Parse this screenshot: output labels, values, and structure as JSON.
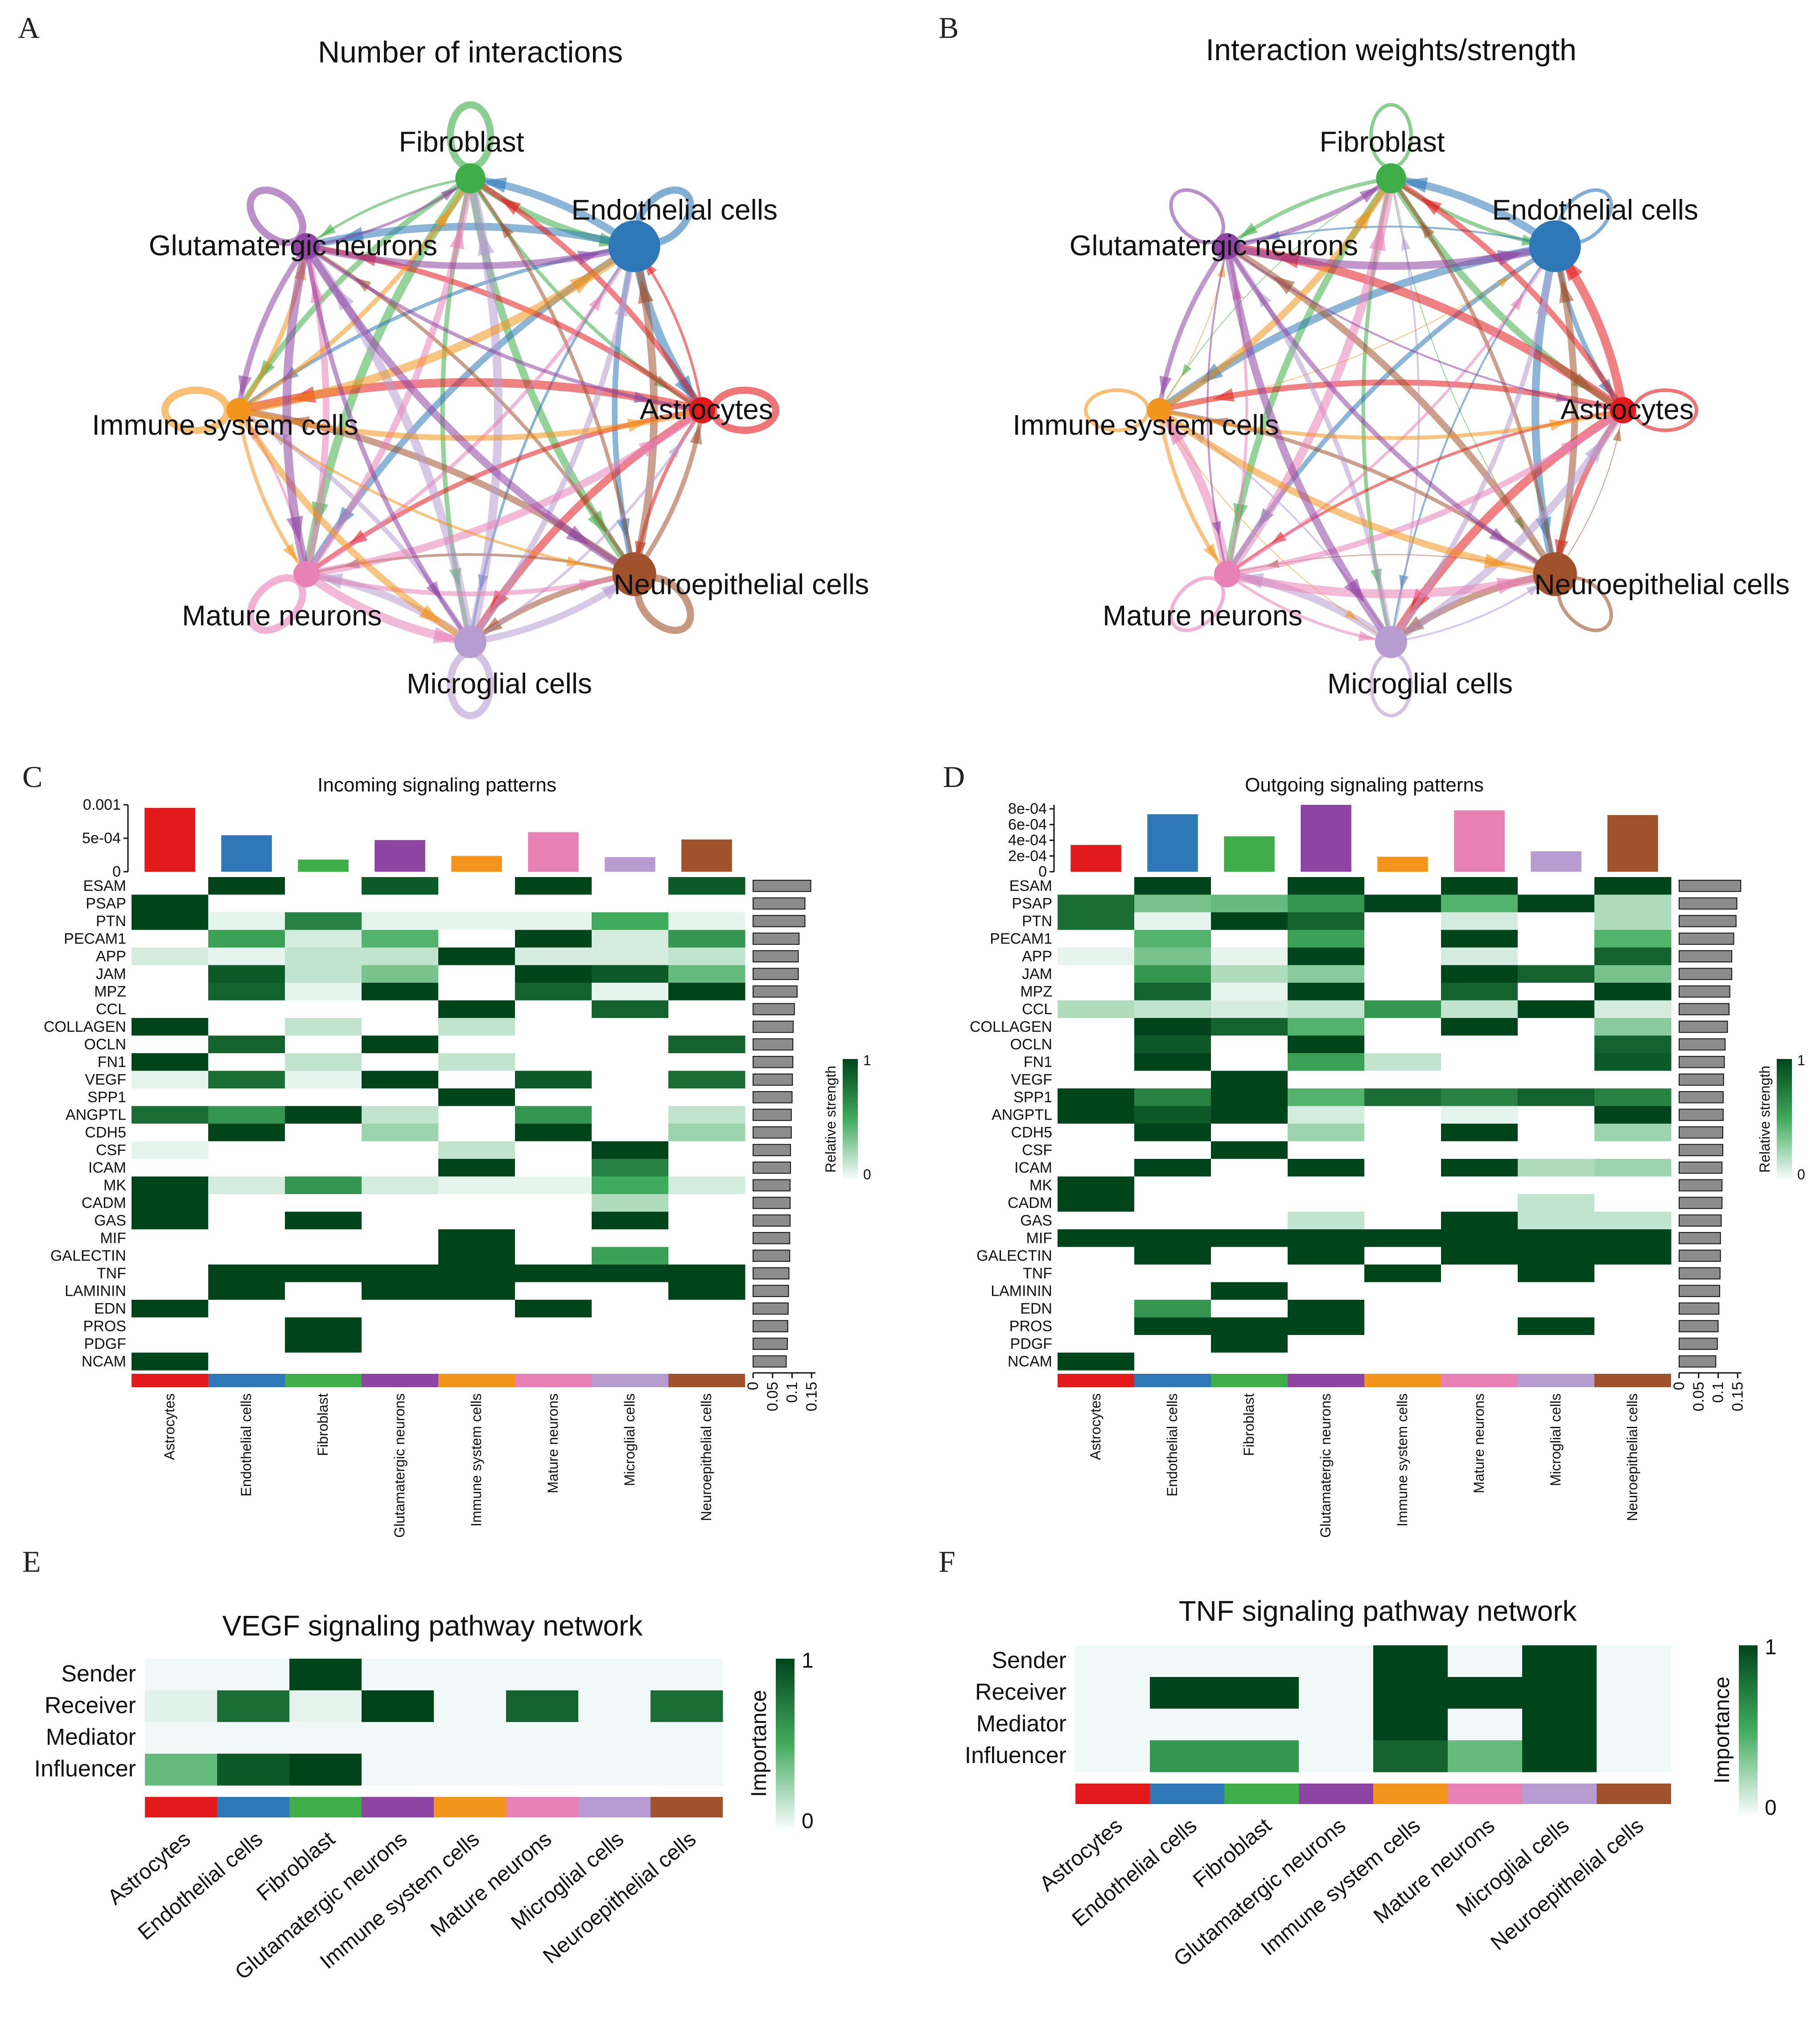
{
  "colors": {
    "Astrocytes": "#e31a1c",
    "Endothelial cells": "#2e78b7",
    "Fibroblast": "#3fae49",
    "Glutamatergic neurons": "#8e44a3",
    "Immune system cells": "#f3941c",
    "Mature neurons": "#e881b6",
    "Microglial cells": "#b79cd1",
    "Neuroepithelial cells": "#a0522d",
    "heat_high": "#00441b",
    "heat_mid": "#41ab5d",
    "heat_low": "#f7fcfd",
    "bar_gray": "#8c8c8c"
  },
  "panels": {
    "A": "A",
    "B": "B",
    "C": "C",
    "D": "D",
    "E": "E",
    "F": "F"
  },
  "chart_data": [
    {
      "id": "A",
      "type": "network",
      "title": "Number of interactions",
      "nodes": [
        "Fibroblast",
        "Endothelial cells",
        "Astrocytes",
        "Neuroepithelial cells",
        "Microglial cells",
        "Mature neurons",
        "Immune system cells",
        "Glutamatergic neurons"
      ],
      "node_size": [
        0.45,
        1.0,
        0.35,
        0.8,
        0.5,
        0.35,
        0.3,
        0.35
      ]
    },
    {
      "id": "B",
      "type": "network",
      "title": "Interaction weights/strength",
      "nodes": [
        "Fibroblast",
        "Endothelial cells",
        "Astrocytes",
        "Neuroepithelial cells",
        "Microglial cells",
        "Mature neurons",
        "Immune system cells",
        "Glutamatergic neurons"
      ],
      "node_size": [
        0.45,
        1.0,
        0.35,
        0.8,
        0.5,
        0.35,
        0.3,
        0.35
      ]
    },
    {
      "id": "C",
      "type": "heatmap",
      "title": "Incoming signaling patterns",
      "columns": [
        "Astrocytes",
        "Endothelial cells",
        "Fibroblast",
        "Glutamatergic neurons",
        "Immune system cells",
        "Mature neurons",
        "Microglial cells",
        "Neuroepithelial cells"
      ],
      "rows": [
        "ESAM",
        "PSAP",
        "PTN",
        "PECAM1",
        "APP",
        "JAM",
        "MPZ",
        "CCL",
        "COLLAGEN",
        "OCLN",
        "FN1",
        "VEGF",
        "SPP1",
        "ANGPTL",
        "CDH5",
        "CSF",
        "ICAM",
        "MK",
        "CADM",
        "GAS",
        "MIF",
        "GALECTIN",
        "TNF",
        "LAMININ",
        "EDN",
        "PROS",
        "PDGF",
        "NCAM"
      ],
      "values": [
        [
          0,
          1,
          0,
          0.9,
          0,
          1,
          0,
          0.9
        ],
        [
          1,
          0,
          0,
          0,
          0,
          0,
          0,
          0
        ],
        [
          1,
          0.05,
          0.7,
          0.05,
          0.05,
          0.05,
          0.5,
          0.05
        ],
        [
          0,
          0.55,
          0.1,
          0.45,
          0,
          1,
          0.1,
          0.6
        ],
        [
          0.1,
          0.05,
          0.15,
          0.15,
          1,
          0.1,
          0.1,
          0.15
        ],
        [
          0,
          0.9,
          0.15,
          0.35,
          0,
          1,
          0.9,
          0.4
        ],
        [
          0,
          0.85,
          0.05,
          1,
          0,
          0.85,
          0.05,
          1
        ],
        [
          0,
          0,
          0,
          0,
          1,
          0,
          0.85,
          0
        ],
        [
          1,
          0,
          0.15,
          0,
          0.15,
          0,
          0,
          0
        ],
        [
          0,
          0.85,
          0,
          1,
          0,
          0,
          0,
          0.85
        ],
        [
          1,
          0,
          0.15,
          0,
          0.15,
          0,
          0,
          0
        ],
        [
          0.05,
          0.8,
          0.05,
          1,
          0,
          0.9,
          0,
          0.8
        ],
        [
          0,
          0,
          0,
          0,
          1,
          0,
          0,
          0
        ],
        [
          0.8,
          0.6,
          1,
          0.15,
          0,
          0.6,
          0,
          0.15
        ],
        [
          0,
          1,
          0,
          0.25,
          0,
          1,
          0,
          0.25
        ],
        [
          0.05,
          0,
          0,
          0,
          0.15,
          0,
          1,
          0
        ],
        [
          0,
          0,
          0,
          0,
          1,
          0,
          0.7,
          0
        ],
        [
          1,
          0.1,
          0.6,
          0.1,
          0.05,
          0.05,
          0.5,
          0.1
        ],
        [
          1,
          0,
          0,
          0,
          0,
          0,
          0.2,
          0
        ],
        [
          1,
          0,
          1,
          0,
          0,
          0,
          1,
          0
        ],
        [
          0,
          0,
          0,
          0,
          1,
          0,
          0,
          0
        ],
        [
          0,
          0,
          0,
          0,
          1,
          0,
          0.55,
          0
        ],
        [
          0,
          1,
          1,
          1,
          1,
          1,
          1,
          1
        ],
        [
          0,
          1,
          0,
          1,
          1,
          0,
          0,
          1
        ],
        [
          1,
          0,
          0,
          0,
          0,
          1,
          0,
          0
        ],
        [
          0,
          0,
          1,
          0,
          0,
          0,
          0,
          0
        ],
        [
          0,
          0,
          1,
          0,
          0,
          0,
          0,
          0
        ],
        [
          1,
          0,
          0,
          0,
          0,
          0,
          0,
          0
        ]
      ],
      "top_bars": [
        0.00105,
        0.0006,
        0.0002,
        0.00052,
        0.00026,
        0.00065,
        0.00024,
        0.00053
      ],
      "top_axis": {
        "ticks": [
          "0.001",
          "5e-04",
          "0"
        ],
        "max": 0.0011
      },
      "side_bars": [
        0.148,
        0.133,
        0.133,
        0.118,
        0.116,
        0.116,
        0.113,
        0.106,
        0.103,
        0.102,
        0.102,
        0.101,
        0.1,
        0.098,
        0.098,
        0.096,
        0.096,
        0.095,
        0.095,
        0.095,
        0.094,
        0.094,
        0.092,
        0.091,
        0.09,
        0.089,
        0.088,
        0.085
      ],
      "side_axis": {
        "ticks": [
          "0",
          "0.05",
          "0.1",
          "0.15"
        ],
        "max": 0.16
      },
      "legend": {
        "label": "Relative strength",
        "high": "1",
        "low": "0"
      }
    },
    {
      "id": "D",
      "type": "heatmap",
      "title": "Outgoing signaling patterns",
      "columns": [
        "Astrocytes",
        "Endothelial cells",
        "Fibroblast",
        "Glutamatergic neurons",
        "Immune system cells",
        "Mature neurons",
        "Microglial cells",
        "Neuroepithelial cells"
      ],
      "rows": [
        "ESAM",
        "PSAP",
        "PTN",
        "PECAM1",
        "APP",
        "JAM",
        "MPZ",
        "CCL",
        "COLLAGEN",
        "OCLN",
        "FN1",
        "VEGF",
        "SPP1",
        "ANGPTL",
        "CDH5",
        "CSF",
        "ICAM",
        "MK",
        "CADM",
        "GAS",
        "MIF",
        "GALECTIN",
        "TNF",
        "LAMININ",
        "EDN",
        "PROS",
        "PDGF",
        "NCAM"
      ],
      "values": [
        [
          0,
          1,
          0,
          1,
          0,
          1,
          0,
          1
        ],
        [
          0.8,
          0.35,
          0.4,
          0.6,
          1,
          0.45,
          1,
          0.2
        ],
        [
          0.8,
          0.05,
          1,
          0.85,
          0,
          0.1,
          0,
          0.2
        ],
        [
          0,
          0.45,
          0,
          0.55,
          0,
          1,
          0,
          0.45
        ],
        [
          0.05,
          0.35,
          0.05,
          1,
          0,
          0.1,
          0,
          0.85
        ],
        [
          0,
          0.6,
          0.2,
          0.3,
          0,
          1,
          0.85,
          0.35
        ],
        [
          0,
          0.85,
          0.05,
          1,
          0,
          0.85,
          0,
          1
        ],
        [
          0.2,
          0.15,
          0.1,
          0.15,
          0.6,
          0.15,
          1,
          0.1
        ],
        [
          0,
          1,
          0.85,
          0.45,
          0,
          1,
          0,
          0.3
        ],
        [
          0,
          0.9,
          0,
          1,
          0,
          0,
          0,
          0.85
        ],
        [
          0,
          1,
          0,
          0.55,
          0.15,
          0,
          0,
          0.9
        ],
        [
          0,
          0,
          1,
          0,
          0,
          0,
          0,
          0
        ],
        [
          1,
          0.7,
          1,
          0.45,
          0.8,
          0.7,
          0.85,
          0.7
        ],
        [
          1,
          0.9,
          1,
          0.1,
          0,
          0.05,
          0,
          1
        ],
        [
          0,
          1,
          0,
          0.25,
          0,
          1,
          0,
          0.25
        ],
        [
          0,
          0,
          1,
          0,
          0,
          0,
          0,
          0
        ],
        [
          0,
          1,
          0,
          1,
          0,
          1,
          0.2,
          0.25
        ],
        [
          1,
          0,
          0,
          0,
          0,
          0,
          0,
          0
        ],
        [
          1,
          0,
          0,
          0,
          0,
          0,
          0.15,
          0
        ],
        [
          0,
          0,
          0,
          0.15,
          0,
          1,
          0.15,
          0.15
        ],
        [
          1,
          1,
          1,
          1,
          1,
          1,
          1,
          1
        ],
        [
          0,
          1,
          0,
          1,
          0,
          1,
          1,
          1
        ],
        [
          0,
          0,
          0,
          0,
          1,
          0,
          1,
          0
        ],
        [
          0,
          0,
          1,
          0,
          0,
          0,
          0,
          0
        ],
        [
          0,
          0.6,
          0,
          1,
          0,
          0,
          0,
          0
        ],
        [
          0,
          1,
          1,
          1,
          0,
          0,
          1,
          0
        ],
        [
          0,
          0,
          1,
          0,
          0,
          0,
          0,
          0
        ],
        [
          1,
          0,
          0,
          0,
          0,
          0,
          0,
          0
        ]
      ],
      "top_bars": [
        0.00034,
        0.00073,
        0.00045,
        0.00085,
        0.00019,
        0.00078,
        0.00026,
        0.00072
      ],
      "top_axis": {
        "ticks": [
          "8e-04",
          "6e-04",
          "4e-04",
          "2e-04",
          "0"
        ],
        "max": 0.00085
      },
      "side_bars": [
        0.158,
        0.148,
        0.146,
        0.14,
        0.135,
        0.135,
        0.13,
        0.128,
        0.124,
        0.118,
        0.116,
        0.114,
        0.113,
        0.113,
        0.112,
        0.112,
        0.11,
        0.11,
        0.11,
        0.108,
        0.106,
        0.106,
        0.105,
        0.104,
        0.102,
        0.1,
        0.098,
        0.094
      ],
      "side_axis": {
        "ticks": [
          "0",
          "0.05",
          "0.1",
          "0.15"
        ],
        "max": 0.16
      },
      "legend": {
        "label": "Relative strength",
        "high": "1",
        "low": "0"
      }
    },
    {
      "id": "E",
      "type": "heatmap",
      "title": "VEGF signaling pathway network",
      "rows": [
        "Sender",
        "Receiver",
        "Mediator",
        "Influencer"
      ],
      "columns": [
        "Astrocytes",
        "Endothelial cells",
        "Fibroblast",
        "Glutamatergic neurons",
        "Immune system cells",
        "Mature neurons",
        "Microglial cells",
        "Neuroepithelial cells"
      ],
      "values": [
        [
          0.02,
          0.02,
          1,
          0.02,
          0.02,
          0.02,
          0.02,
          0.02
        ],
        [
          0.06,
          0.8,
          0.05,
          1,
          0.02,
          0.85,
          0.02,
          0.8
        ],
        [
          0.02,
          0.02,
          0.02,
          0.02,
          0.02,
          0.02,
          0.02,
          0.02
        ],
        [
          0.4,
          0.9,
          1,
          0.02,
          0.02,
          0.02,
          0.02,
          0.02
        ]
      ],
      "legend": {
        "label": "Importance",
        "high": "1",
        "low": "0"
      }
    },
    {
      "id": "F",
      "type": "heatmap",
      "title": "TNF signaling pathway network",
      "rows": [
        "Sender",
        "Receiver",
        "Mediator",
        "Influencer"
      ],
      "columns": [
        "Astrocytes",
        "Endothelial cells",
        "Fibroblast",
        "Glutamatergic neurons",
        "Immune system cells",
        "Mature neurons",
        "Microglial cells",
        "Neuroepithelial cells"
      ],
      "values": [
        [
          0.02,
          0.02,
          0.02,
          0.02,
          1,
          0.02,
          1,
          0.02
        ],
        [
          0.02,
          1,
          1,
          0.02,
          1,
          1,
          1,
          0.02
        ],
        [
          0.02,
          0.02,
          0.02,
          0.02,
          1,
          0.02,
          1,
          0.02
        ],
        [
          0.02,
          0.6,
          0.6,
          0.02,
          0.85,
          0.4,
          1,
          0.02
        ]
      ],
      "legend": {
        "label": "Importance",
        "high": "1",
        "low": "0"
      }
    }
  ]
}
